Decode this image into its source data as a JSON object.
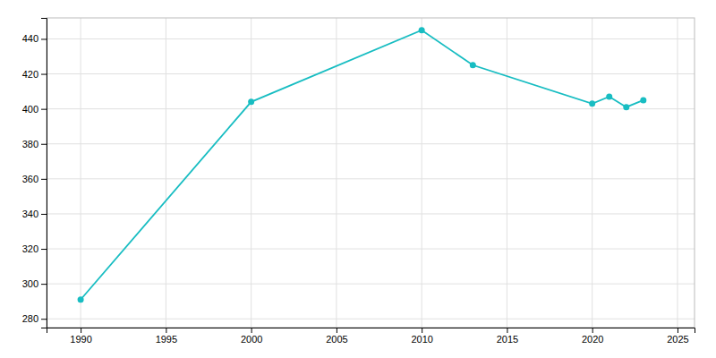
{
  "chart_data": {
    "type": "line",
    "x": [
      1990,
      2000,
      2010,
      2013,
      2020,
      2021,
      2022,
      2023
    ],
    "values": [
      291,
      404,
      445,
      425,
      403,
      407,
      401,
      405
    ],
    "color": "#18BDC2",
    "marker": "circle",
    "xlim": [
      1988,
      2026
    ],
    "ylim": [
      275,
      452
    ],
    "xticks": [
      1990,
      1995,
      2000,
      2005,
      2010,
      2015,
      2020,
      2025
    ],
    "yticks": [
      280,
      300,
      320,
      340,
      360,
      380,
      400,
      420,
      440
    ],
    "grid": true
  }
}
